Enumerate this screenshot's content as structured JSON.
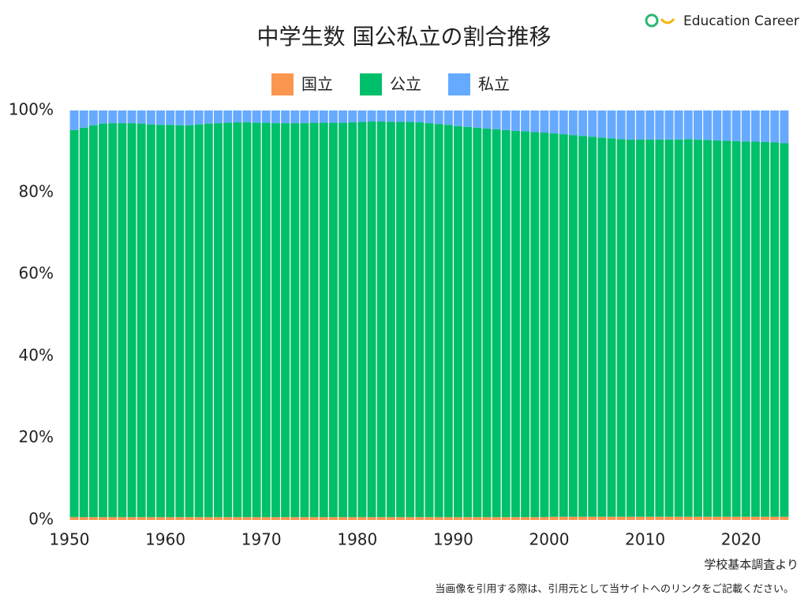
{
  "logo": "Education Career",
  "chart_data": {
    "type": "stacked_bar_100",
    "title": "中学生数 国公私立の割合推移",
    "x": [
      1950,
      1951,
      1952,
      1953,
      1954,
      1955,
      1956,
      1957,
      1958,
      1959,
      1960,
      1961,
      1962,
      1963,
      1964,
      1965,
      1966,
      1967,
      1968,
      1969,
      1970,
      1971,
      1972,
      1973,
      1974,
      1975,
      1976,
      1977,
      1978,
      1979,
      1980,
      1981,
      1982,
      1983,
      1984,
      1985,
      1986,
      1987,
      1988,
      1989,
      1990,
      1991,
      1992,
      1993,
      1994,
      1995,
      1996,
      1997,
      1998,
      1999,
      2000,
      2001,
      2002,
      2003,
      2004,
      2005,
      2006,
      2007,
      2008,
      2009,
      2010,
      2011,
      2012,
      2013,
      2014,
      2015,
      2016,
      2017,
      2018,
      2019,
      2020,
      2021,
      2022,
      2023,
      2024
    ],
    "xlim": [
      1950,
      2025
    ],
    "xticks": [
      1950,
      1960,
      1970,
      1980,
      1990,
      2000,
      2010,
      2020
    ],
    "ylim": [
      0,
      100
    ],
    "yticks": [
      {
        "value": 0,
        "label": "0%"
      },
      {
        "value": 20,
        "label": "20%"
      },
      {
        "value": 40,
        "label": "40%"
      },
      {
        "value": 60,
        "label": "60%"
      },
      {
        "value": 80,
        "label": "80%"
      },
      {
        "value": 100,
        "label": "100%"
      }
    ],
    "grid": false,
    "legend": "top",
    "series": [
      {
        "name": "国立",
        "color": "#fb9650",
        "values": [
          0.7,
          0.7,
          0.7,
          0.7,
          0.7,
          0.7,
          0.7,
          0.7,
          0.7,
          0.7,
          0.7,
          0.7,
          0.7,
          0.7,
          0.7,
          0.7,
          0.7,
          0.7,
          0.7,
          0.7,
          0.7,
          0.7,
          0.7,
          0.7,
          0.7,
          0.7,
          0.7,
          0.7,
          0.7,
          0.7,
          0.7,
          0.7,
          0.7,
          0.7,
          0.7,
          0.7,
          0.7,
          0.7,
          0.7,
          0.7,
          0.7,
          0.7,
          0.7,
          0.7,
          0.7,
          0.7,
          0.7,
          0.7,
          0.7,
          0.7,
          0.8,
          0.8,
          0.8,
          0.8,
          0.8,
          0.8,
          0.8,
          0.8,
          0.8,
          0.8,
          0.8,
          0.8,
          0.8,
          0.8,
          0.8,
          0.8,
          0.8,
          0.8,
          0.8,
          0.8,
          0.8,
          0.8,
          0.8,
          0.8,
          0.8
        ]
      },
      {
        "name": "公立",
        "color": "#00bf6a",
        "values": [
          94.5,
          95.1,
          95.7,
          96.1,
          96.2,
          96.2,
          96.2,
          96.1,
          95.9,
          95.8,
          95.8,
          95.7,
          95.7,
          95.9,
          96.1,
          96.2,
          96.3,
          96.4,
          96.4,
          96.3,
          96.3,
          96.2,
          96.2,
          96.2,
          96.2,
          96.3,
          96.3,
          96.3,
          96.3,
          96.4,
          96.5,
          96.6,
          96.6,
          96.5,
          96.5,
          96.5,
          96.4,
          96.2,
          96.0,
          95.8,
          95.5,
          95.3,
          95.1,
          94.9,
          94.7,
          94.5,
          94.3,
          94.2,
          94.0,
          93.9,
          93.6,
          93.4,
          93.2,
          93.0,
          92.8,
          92.6,
          92.4,
          92.2,
          92.1,
          92.1,
          92.1,
          92.1,
          92.1,
          92.1,
          92.2,
          92.1,
          92.0,
          91.9,
          91.8,
          91.7,
          91.6,
          91.6,
          91.5,
          91.4,
          91.2
        ]
      },
      {
        "name": "私立",
        "color": "#66aaff",
        "values": [
          4.8,
          4.2,
          3.6,
          3.2,
          3.1,
          3.1,
          3.1,
          3.2,
          3.4,
          3.5,
          3.5,
          3.6,
          3.6,
          3.4,
          3.2,
          3.1,
          3.0,
          2.9,
          2.9,
          3.0,
          3.0,
          3.1,
          3.1,
          3.1,
          3.1,
          3.0,
          3.0,
          3.0,
          3.0,
          2.9,
          2.8,
          2.7,
          2.7,
          2.8,
          2.8,
          2.8,
          2.9,
          3.1,
          3.3,
          3.5,
          3.8,
          4.0,
          4.2,
          4.4,
          4.6,
          4.8,
          5.0,
          5.1,
          5.3,
          5.4,
          5.6,
          5.8,
          6.0,
          6.2,
          6.4,
          6.6,
          6.8,
          7.0,
          7.1,
          7.1,
          7.1,
          7.1,
          7.1,
          7.1,
          7.0,
          7.1,
          7.2,
          7.3,
          7.4,
          7.5,
          7.6,
          7.6,
          7.7,
          7.8,
          8.0
        ]
      }
    ],
    "source": "学校基本調査より",
    "note": "当画像を引用する際は、引用元として当サイトへのリンクをご記載ください。"
  }
}
